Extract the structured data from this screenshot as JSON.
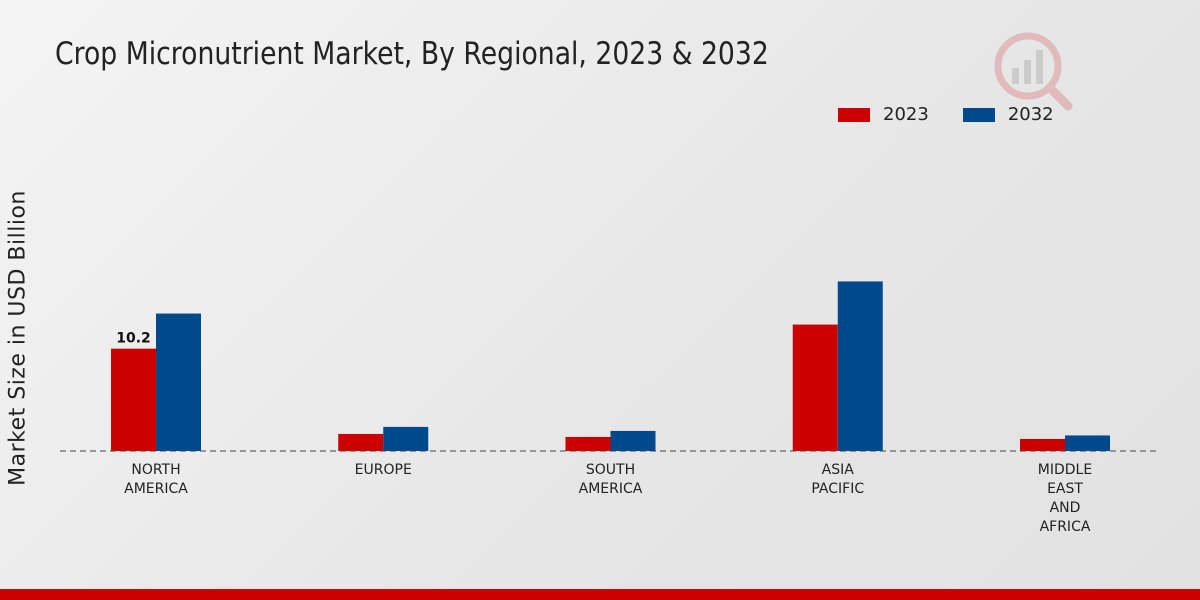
{
  "chart_data": {
    "type": "bar",
    "title": "Crop Micronutrient Market, By Regional, 2023 & 2032",
    "xlabel": "",
    "ylabel": "Market Size in USD Billion",
    "categories": [
      "NORTH\nAMERICA",
      "EUROPE",
      "SOUTH\nAMERICA",
      "ASIA\nPACIFIC",
      "MIDDLE\nEAST\nAND\nAFRICA"
    ],
    "series": [
      {
        "name": "2023",
        "color": "#cc0000",
        "values": [
          10.2,
          1.7,
          1.4,
          12.6,
          1.2
        ]
      },
      {
        "name": "2032",
        "color": "#004a8c",
        "values": [
          13.7,
          2.4,
          2.0,
          16.9,
          1.55
        ]
      }
    ],
    "data_labels": [
      {
        "series": 0,
        "index": 0,
        "text": "10.2"
      }
    ],
    "ylim": [
      0,
      30
    ],
    "grid": false,
    "legend_position": "top-right"
  }
}
